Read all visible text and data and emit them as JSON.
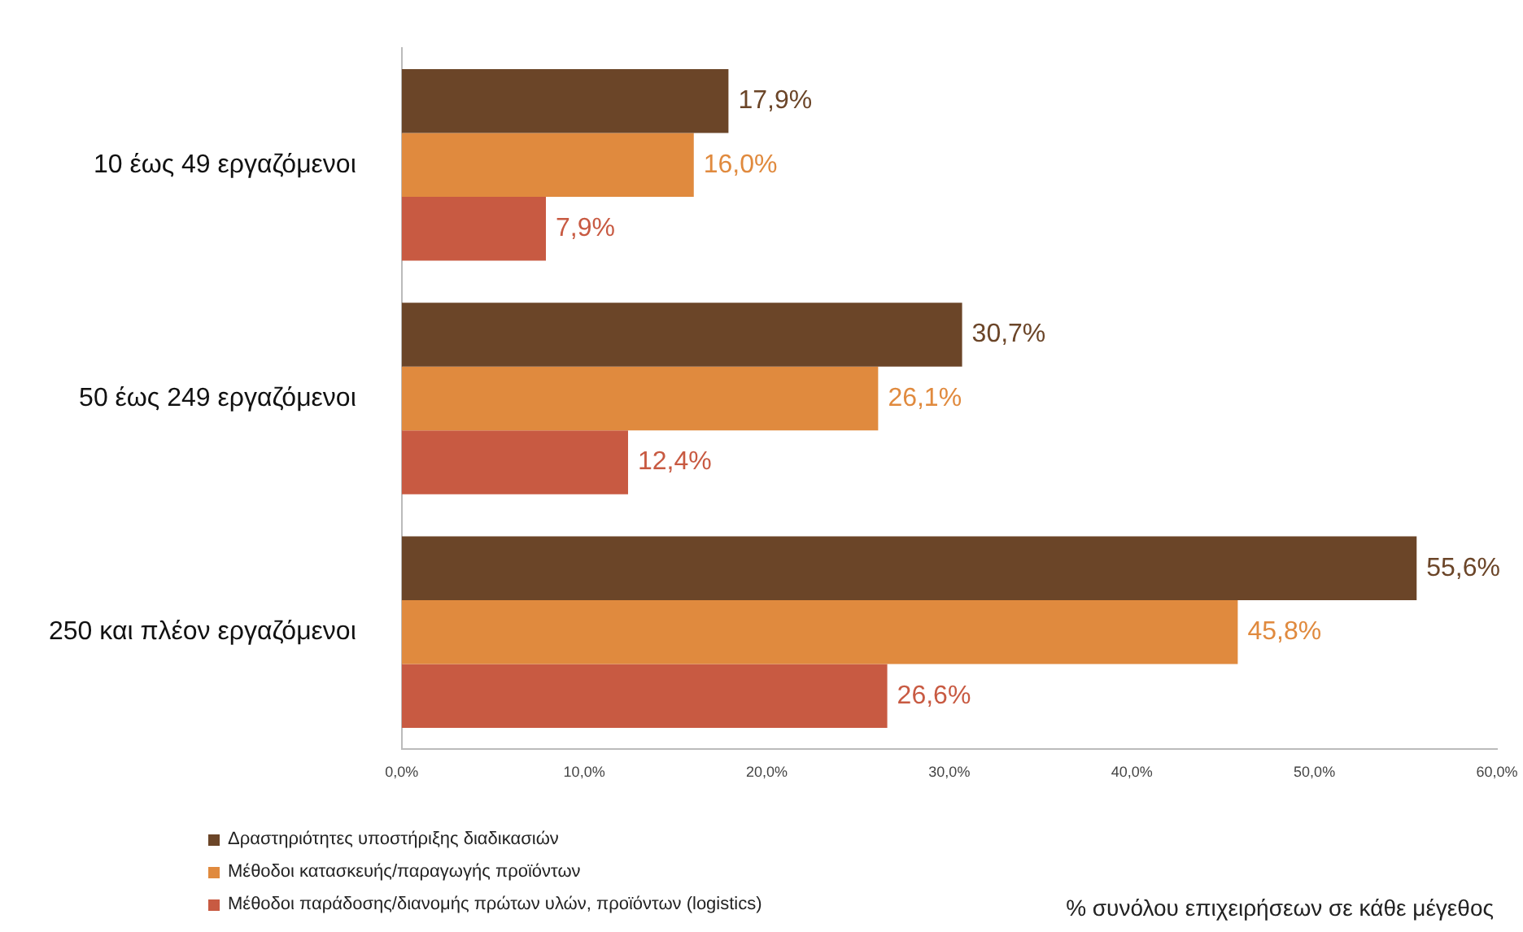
{
  "chart_data": {
    "type": "bar",
    "orientation": "horizontal",
    "annotations": [
      "% συνόλου  επιχειρήσεων σε κάθε μέγεθος"
    ],
    "categories": [
      "10 έως 49 εργαζόμενοι",
      "50 έως 249 εργαζόμενοι",
      "250 και πλέον εργαζόμενοι"
    ],
    "series": [
      {
        "name": "Δραστηριότητες υποστήριξης διαδικασιών",
        "color": "#6b4528",
        "values": [
          17.9,
          30.7,
          55.6
        ],
        "value_labels": [
          "17,9%",
          "30,7%",
          "55,6%"
        ]
      },
      {
        "name": "Μέθοδοι κατασκευής/παραγωγής προϊόντων",
        "color": "#e08a3e",
        "values": [
          16.0,
          26.1,
          45.8
        ],
        "value_labels": [
          "16,0%",
          "26,1%",
          "45,8%"
        ]
      },
      {
        "name": "Μέθοδοι παράδοσης/διανομής πρώτων υλών, προϊόντων (logistics)",
        "color": "#c85a42",
        "values": [
          7.9,
          12.4,
          26.6
        ],
        "value_labels": [
          "7,9%",
          "12,4%",
          "26,6%"
        ]
      }
    ],
    "xlim": [
      0,
      60
    ],
    "xticks": [
      {
        "value": 0,
        "label": "0,0%"
      },
      {
        "value": 10,
        "label": "10,0%"
      },
      {
        "value": 20,
        "label": "20,0%"
      },
      {
        "value": 30,
        "label": "30,0%"
      },
      {
        "value": 40,
        "label": "40,0%"
      },
      {
        "value": 50,
        "label": "50,0%"
      },
      {
        "value": 60,
        "label": "60,0%"
      }
    ],
    "grid": false,
    "legend": "bottom left"
  }
}
